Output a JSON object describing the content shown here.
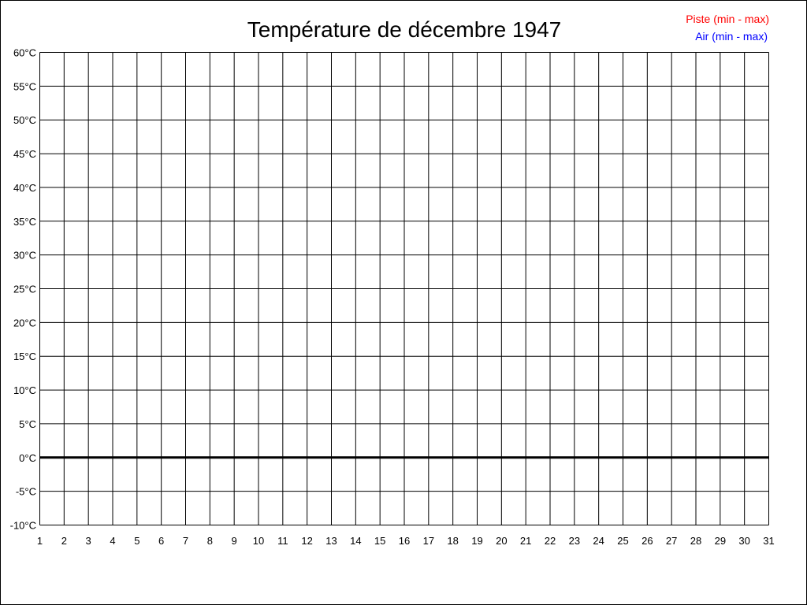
{
  "chart_data": {
    "type": "line",
    "title": "Température de décembre 1947",
    "xlabel": "",
    "ylabel": "",
    "x_ticks": [
      "1",
      "2",
      "3",
      "4",
      "5",
      "6",
      "7",
      "8",
      "9",
      "10",
      "11",
      "12",
      "13",
      "14",
      "15",
      "16",
      "17",
      "18",
      "19",
      "20",
      "21",
      "22",
      "23",
      "24",
      "25",
      "26",
      "27",
      "28",
      "29",
      "30",
      "31"
    ],
    "y_ticks": [
      "60°C",
      "55°C",
      "50°C",
      "45°C",
      "40°C",
      "35°C",
      "30°C",
      "25°C",
      "20°C",
      "15°C",
      "10°C",
      "5°C",
      "0°C",
      "-5°C",
      "-10°C"
    ],
    "xlim": [
      1,
      31
    ],
    "ylim": [
      -10,
      60
    ],
    "y_step": 5,
    "grid": true,
    "zero_line_emphasized": true,
    "legend_position": "top-right",
    "series": [
      {
        "name": "Piste (min - max)",
        "color": "#ff0000",
        "values": []
      },
      {
        "name": "Air (min - max)",
        "color": "#0000ff",
        "values": []
      }
    ]
  }
}
